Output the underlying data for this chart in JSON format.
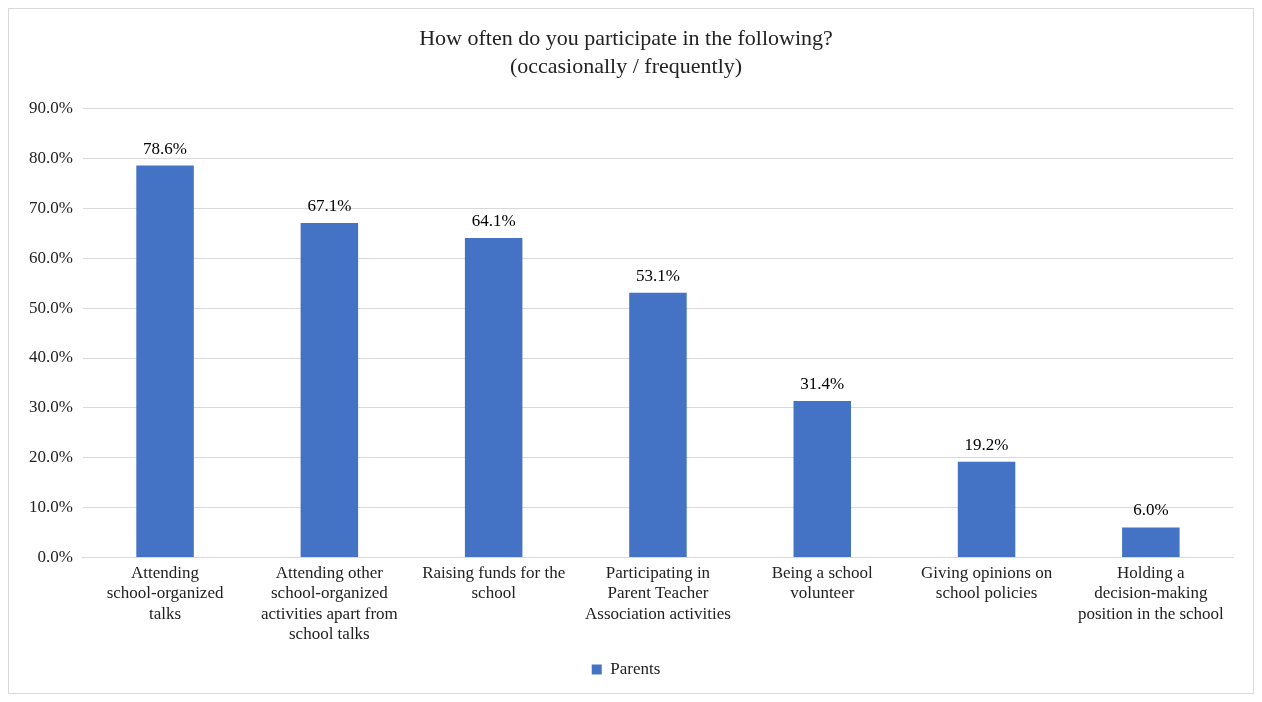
{
  "chart_data": {
    "type": "bar",
    "title": "How often do you participate in the following?",
    "subtitle": "(occasionally / frequently)",
    "categories": [
      "Attending school-organized talks",
      "Attending other school-organized activities apart from school talks",
      "Raising funds for the school",
      "Participating in Parent Teacher Association activities",
      "Being a school volunteer",
      "Giving opinions on school policies",
      "Holding a decision-making position in the school"
    ],
    "series": [
      {
        "name": "Parents",
        "color": "#4472c4",
        "values": [
          78.6,
          67.1,
          64.1,
          53.1,
          31.4,
          19.2,
          6.0
        ],
        "value_labels": [
          "78.6%",
          "67.1%",
          "64.1%",
          "53.1%",
          "31.4%",
          "19.2%",
          "6.0%"
        ]
      }
    ],
    "ylim": [
      0,
      90
    ],
    "yticks": [
      {
        "value": 0,
        "label": "0.0%"
      },
      {
        "value": 10,
        "label": "10.0%"
      },
      {
        "value": 20,
        "label": "20.0%"
      },
      {
        "value": 30,
        "label": "30.0%"
      },
      {
        "value": 40,
        "label": "40.0%"
      },
      {
        "value": 50,
        "label": "50.0%"
      },
      {
        "value": 60,
        "label": "60.0%"
      },
      {
        "value": 70,
        "label": "70.0%"
      },
      {
        "value": 80,
        "label": "80.0%"
      },
      {
        "value": 90,
        "label": "90.0%"
      }
    ],
    "grid": "y",
    "legend": "bottom"
  }
}
